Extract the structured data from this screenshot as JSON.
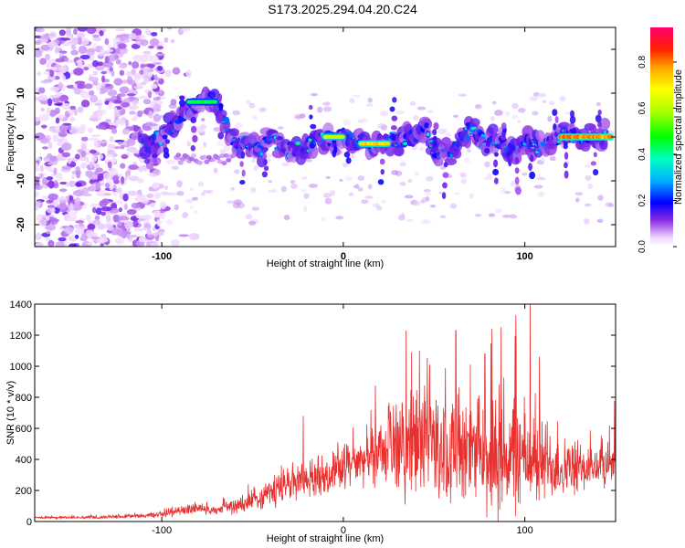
{
  "title": "S173.2025.294.04.20.C24",
  "chart_data": [
    {
      "type": "heatmap",
      "title": "S173.2025.294.04.20.C24",
      "xlabel": "Height of straight line (km)",
      "ylabel": "Frequency (Hz)",
      "xlim": [
        -170,
        150
      ],
      "ylim": [
        -25,
        25
      ],
      "xticks": [
        -100,
        0,
        100
      ],
      "xtick_labels": [
        "-100",
        "0",
        "100"
      ],
      "yticks": [
        -20,
        -10,
        0,
        10,
        20
      ],
      "ytick_labels": [
        "-20",
        "-10",
        "0",
        "10",
        "20"
      ],
      "colorbar": {
        "label": "Normalized spectral amplitude",
        "range": [
          0,
          0.95
        ],
        "ticks": [
          0.0,
          0.2,
          0.4,
          0.6,
          0.8
        ],
        "tick_labels": [
          "0.0",
          "0.2",
          "0.4",
          "0.6",
          "0.8"
        ]
      },
      "ridge": {
        "description_points": [
          [
            -110,
            -2
          ],
          [
            -105,
            -1
          ],
          [
            -100,
            0
          ],
          [
            -95,
            2
          ],
          [
            -90,
            4
          ],
          [
            -85,
            6
          ],
          [
            -80,
            8
          ],
          [
            -75,
            9
          ],
          [
            -70,
            9
          ],
          [
            -60,
            -2
          ],
          [
            -55,
            -1
          ],
          [
            -45,
            -3
          ],
          [
            -40,
            0
          ],
          [
            -30,
            -3
          ],
          [
            -20,
            -2
          ],
          [
            -10,
            0
          ],
          [
            0,
            0
          ],
          [
            10,
            -1
          ],
          [
            15,
            -2
          ],
          [
            20,
            -1
          ],
          [
            25,
            0
          ],
          [
            30,
            -1
          ],
          [
            40,
            0
          ],
          [
            45,
            3
          ],
          [
            50,
            -3
          ],
          [
            55,
            -4
          ],
          [
            60,
            -3
          ],
          [
            65,
            0
          ],
          [
            70,
            2
          ],
          [
            80,
            -2
          ],
          [
            85,
            -1
          ],
          [
            90,
            -2
          ],
          [
            95,
            -3
          ],
          [
            100,
            -1
          ],
          [
            105,
            -2
          ],
          [
            110,
            -3
          ],
          [
            115,
            -1
          ],
          [
            120,
            0
          ],
          [
            125,
            0
          ],
          [
            130,
            0
          ],
          [
            140,
            0
          ],
          [
            145,
            0
          ]
        ],
        "peak_segments": [
          {
            "x_start": 120,
            "x_end": 148,
            "freq": 0,
            "amplitude": 0.9
          },
          {
            "x_start": 10,
            "x_end": 25,
            "freq": -1.5,
            "amplitude": 0.8
          },
          {
            "x_start": -10,
            "x_end": 0,
            "freq": 0,
            "amplitude": 0.7
          },
          {
            "x_start": -85,
            "x_end": -70,
            "freq": 8,
            "amplitude": 0.5
          }
        ]
      }
    },
    {
      "type": "line",
      "xlabel": "Height of straight line (km)",
      "ylabel": "SNR (10 * v/v)",
      "xlim": [
        -170,
        150
      ],
      "ylim": [
        0,
        1400
      ],
      "xticks": [
        -100,
        0,
        100
      ],
      "xtick_labels": [
        "-100",
        "0",
        "100"
      ],
      "yticks": [
        0,
        200,
        400,
        600,
        800,
        1000,
        1200,
        1400
      ],
      "ytick_labels": [
        "0",
        "200",
        "400",
        "600",
        "800",
        "1000",
        "1200",
        "1400"
      ],
      "color": "#e8302f",
      "envelope": {
        "x": [
          -170,
          -150,
          -130,
          -110,
          -100,
          -90,
          -80,
          -70,
          -60,
          -50,
          -40,
          -30,
          -20,
          -10,
          0,
          10,
          20,
          30,
          40,
          50,
          60,
          70,
          80,
          90,
          100,
          110,
          120,
          130,
          140,
          150
        ],
        "base": [
          25,
          25,
          28,
          35,
          45,
          70,
          80,
          70,
          90,
          130,
          180,
          230,
          260,
          290,
          330,
          380,
          430,
          440,
          470,
          480,
          420,
          380,
          380,
          400,
          380,
          370,
          330,
          320,
          340,
          380
        ],
        "spread": [
          15,
          15,
          18,
          25,
          40,
          80,
          60,
          60,
          90,
          140,
          200,
          230,
          220,
          230,
          250,
          290,
          400,
          600,
          650,
          700,
          700,
          620,
          700,
          850,
          650,
          550,
          380,
          300,
          280,
          260
        ]
      },
      "peaks": [
        {
          "x": 103,
          "y": 1400
        },
        {
          "x": 95,
          "y": 1330
        },
        {
          "x": 87,
          "y": 1250
        },
        {
          "x": 62,
          "y": 1230
        },
        {
          "x": 42,
          "y": 1100
        },
        {
          "x": 78,
          "y": 1080
        },
        {
          "x": 70,
          "y": 1010
        },
        {
          "x": -22,
          "y": 680
        },
        {
          "x": 108,
          "y": 1060
        }
      ]
    }
  ]
}
